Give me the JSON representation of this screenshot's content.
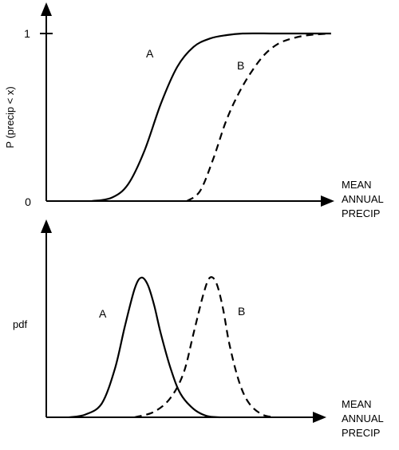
{
  "chart_data": [
    {
      "type": "line",
      "ylabel": "P (precip < x)",
      "xlabel": "MEAN ANNUAL PRECIP",
      "yticks": [
        "0",
        "1"
      ],
      "ylim": [
        0,
        1
      ],
      "series": [
        {
          "name": "A",
          "style": "solid",
          "x": [
            0.14,
            0.2,
            0.25,
            0.3,
            0.35,
            0.4,
            0.45,
            0.5,
            0.55,
            0.6,
            0.7,
            0.8,
            0.87
          ],
          "y": [
            0.0,
            0.02,
            0.1,
            0.3,
            0.58,
            0.8,
            0.92,
            0.97,
            0.99,
            1.0,
            1.0,
            1.0,
            1.0
          ]
        },
        {
          "name": "B",
          "style": "dashed",
          "x": [
            0.43,
            0.47,
            0.51,
            0.55,
            0.59,
            0.63,
            0.67,
            0.71,
            0.75,
            0.8,
            0.87
          ],
          "y": [
            0.0,
            0.06,
            0.25,
            0.48,
            0.65,
            0.78,
            0.88,
            0.94,
            0.97,
            0.99,
            1.0
          ]
        }
      ]
    },
    {
      "type": "line",
      "ylabel": "pdf",
      "xlabel": "MEAN ANNUAL PRECIP",
      "series": [
        {
          "name": "A",
          "style": "solid",
          "x": [
            0.07,
            0.12,
            0.17,
            0.21,
            0.24,
            0.27,
            0.29,
            0.31,
            0.33,
            0.35,
            0.38,
            0.41,
            0.45,
            0.49,
            0.53
          ],
          "y": [
            0.0,
            0.02,
            0.1,
            0.35,
            0.65,
            0.92,
            1.0,
            0.95,
            0.8,
            0.6,
            0.35,
            0.17,
            0.06,
            0.01,
            0.0
          ]
        },
        {
          "name": "B",
          "style": "dashed",
          "x": [
            0.27,
            0.33,
            0.38,
            0.42,
            0.45,
            0.48,
            0.5,
            0.52,
            0.54,
            0.56,
            0.59,
            0.62,
            0.66,
            0.7
          ],
          "y": [
            0.0,
            0.04,
            0.14,
            0.32,
            0.6,
            0.88,
            1.0,
            0.96,
            0.78,
            0.52,
            0.25,
            0.1,
            0.02,
            0.0
          ]
        }
      ]
    }
  ]
}
